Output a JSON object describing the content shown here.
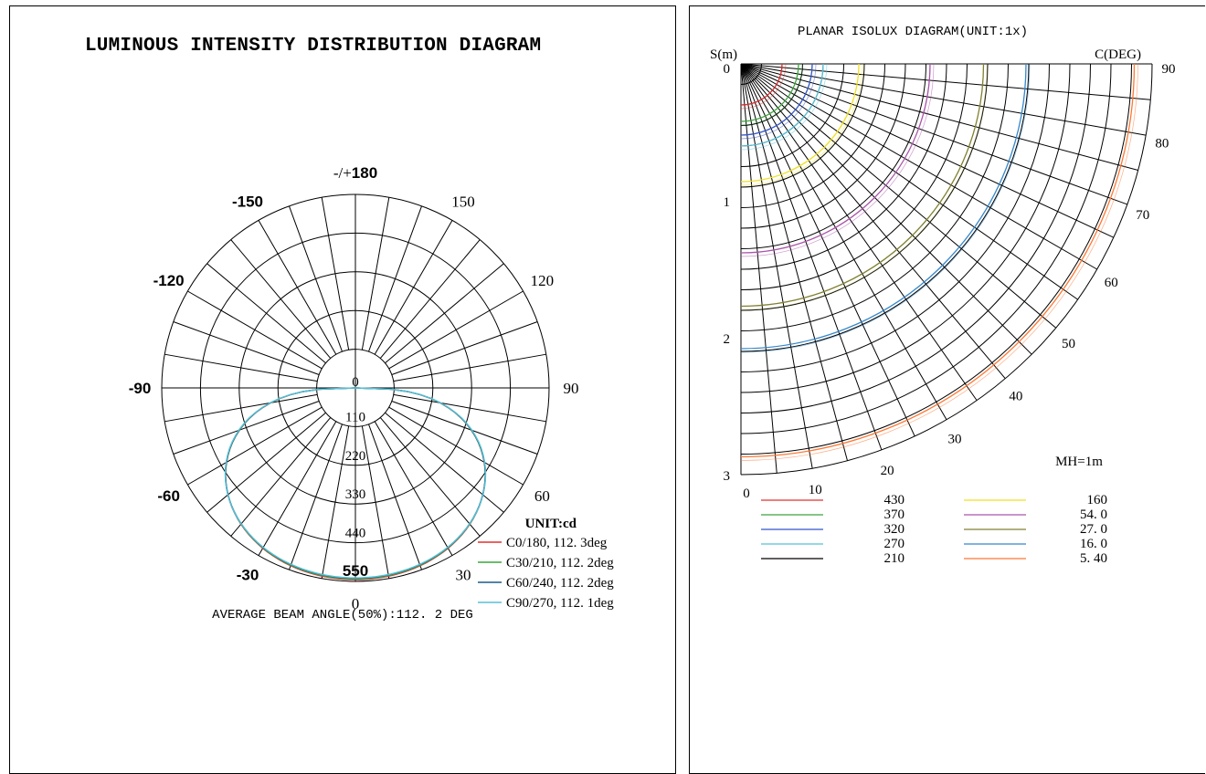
{
  "chart_data": [
    {
      "type": "polar",
      "title": "LUMINOUS INTENSITY DISTRIBUTION DIAGRAM",
      "unit": "UNIT:cd",
      "angle_labels": [
        {
          "deg": 180,
          "text": "-/+180",
          "bold": "180"
        },
        {
          "deg": 150,
          "text": "150"
        },
        {
          "deg": 120,
          "text": "120"
        },
        {
          "deg": 90,
          "text": "90"
        },
        {
          "deg": 60,
          "text": "60"
        },
        {
          "deg": 30,
          "text": "30"
        },
        {
          "deg": 0,
          "text": "0"
        },
        {
          "deg": -30,
          "text": "-30"
        },
        {
          "deg": -60,
          "text": "-60"
        },
        {
          "deg": -90,
          "text": "-90"
        },
        {
          "deg": -120,
          "text": "-120"
        },
        {
          "deg": -150,
          "text": "-150"
        }
      ],
      "radial_ticks": [
        "0",
        "110",
        "220",
        "330",
        "440",
        "550"
      ],
      "rmax": 550,
      "series": [
        {
          "name": "C0/180, 112. 3deg",
          "color": "#e03030",
          "peak": 545
        },
        {
          "name": "C30/210, 112. 2deg",
          "color": "#3aa53a",
          "peak": 543
        },
        {
          "name": "C60/240, 112. 2deg",
          "color": "#1a5a8a",
          "peak": 541
        },
        {
          "name": "C90/270, 112. 1deg",
          "color": "#55c0d8",
          "peak": 540
        }
      ],
      "caption": "AVERAGE BEAM ANGLE(50%):112. 2 DEG"
    },
    {
      "type": "isolux",
      "title": "PLANAR ISOLUX DIAGRAM(UNIT:1x)",
      "y_axis_label": "S(m)",
      "c_axis_label": "C(DEG)",
      "y_ticks": [
        "0",
        "1",
        "2",
        "3"
      ],
      "c_ticks": [
        "0",
        "10",
        "20",
        "30",
        "40",
        "50",
        "60",
        "70",
        "80",
        "90"
      ],
      "smax": 3,
      "mh": "MH=1m",
      "contours": [
        {
          "value": "430",
          "color": "#e03030",
          "radius": 0.3
        },
        {
          "value": "370",
          "color": "#3aa53a",
          "radius": 0.42
        },
        {
          "value": "320",
          "color": "#3355cc",
          "radius": 0.52
        },
        {
          "value": "270",
          "color": "#55c0d8",
          "radius": 0.6
        },
        {
          "value": "210",
          "color": "#000000",
          "radius": 0.0
        },
        {
          "value": "160",
          "color": "#f0e020",
          "radius": 0.86
        },
        {
          "value": "54. 0",
          "color": "#aa55aa",
          "radius": 1.38
        },
        {
          "value": "27. 0",
          "color": "#808030",
          "radius": 1.77
        },
        {
          "value": "16. 0",
          "color": "#3388cc",
          "radius": 2.08
        },
        {
          "value": "5. 40",
          "color": "#ff7733",
          "radius": 2.87
        }
      ]
    }
  ]
}
